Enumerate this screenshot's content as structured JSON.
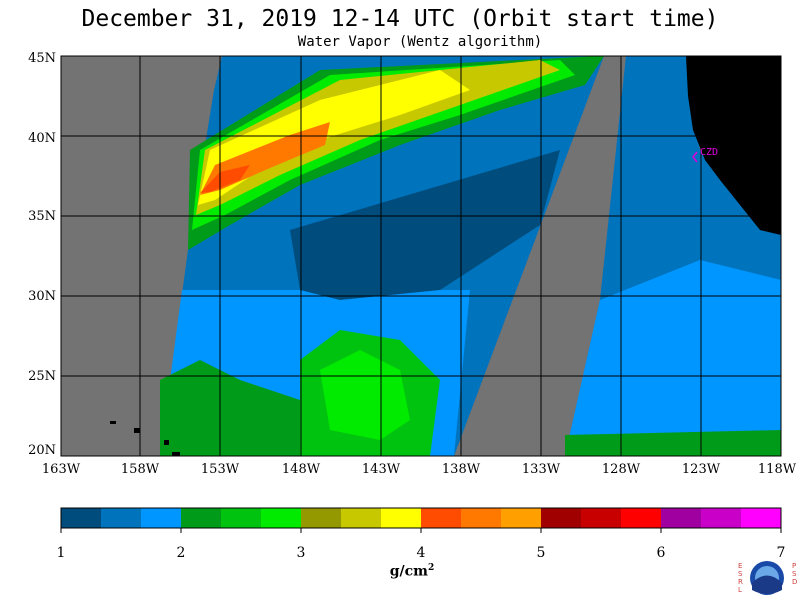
{
  "title": "December 31, 2019  12-14 UTC  (Orbit start time)",
  "subtitle": "Water Vapor (Wentz algorithm)",
  "latitude_labels": [
    "45N",
    "40N",
    "35N",
    "30N",
    "25N",
    "20N"
  ],
  "longitude_labels": [
    "163W",
    "158W",
    "153W",
    "148W",
    "143W",
    "138W",
    "133W",
    "128W",
    "123W",
    "118W"
  ],
  "station_label": "CZD",
  "colorbar": {
    "tick_labels": [
      "1",
      "2",
      "3",
      "4",
      "5",
      "6",
      "7"
    ],
    "units_base": "g/cm",
    "units_exp": "2",
    "colors": [
      "#004c7c",
      "#0073bd",
      "#0096ff",
      "#009b19",
      "#00c30f",
      "#00eb00",
      "#949900",
      "#c8c800",
      "#ffff00",
      "#ff4c00",
      "#ff7800",
      "#ffa000",
      "#a00000",
      "#c80000",
      "#ff0000",
      "#a000a0",
      "#c800c8",
      "#ff00ff"
    ]
  },
  "map": {
    "lat_range": [
      20,
      45
    ],
    "lon_range": [
      -163,
      -118
    ],
    "colors": {
      "no_data": "#737373",
      "land": "#000000",
      "grid": "#000000"
    }
  },
  "logo": {
    "left_letters": "E S R L",
    "right_letters": "P S D",
    "center_text": "NOAA"
  }
}
